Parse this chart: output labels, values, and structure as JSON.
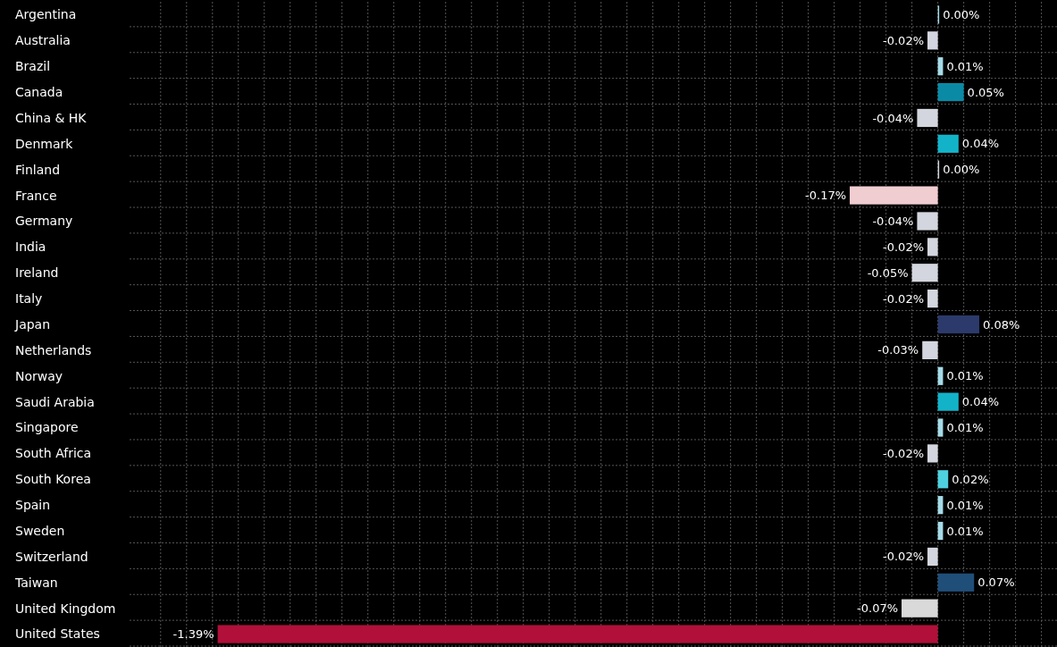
{
  "chart_data": {
    "type": "bar",
    "orientation": "horizontal",
    "categories": [
      "Argentina",
      "Australia",
      "Brazil",
      "Canada",
      "China & HK",
      "Denmark",
      "Finland",
      "France",
      "Germany",
      "India",
      "Ireland",
      "Italy",
      "Japan",
      "Netherlands",
      "Norway",
      "Saudi Arabia",
      "Singapore",
      "South Africa",
      "South Korea",
      "Spain",
      "Sweden",
      "Switzerland",
      "Taiwan",
      "United Kingdom",
      "United States"
    ],
    "values": [
      0.0,
      -0.02,
      0.01,
      0.05,
      -0.04,
      0.04,
      0.0,
      -0.17,
      -0.04,
      -0.02,
      -0.05,
      -0.02,
      0.08,
      -0.03,
      0.01,
      0.04,
      0.01,
      -0.02,
      0.02,
      0.01,
      0.01,
      -0.02,
      0.07,
      -0.07,
      -1.39
    ],
    "value_labels": [
      "0.00%",
      "-0.02%",
      "0.01%",
      "0.05%",
      "-0.04%",
      "0.04%",
      "0.00%",
      "-0.17%",
      "-0.04%",
      "-0.02%",
      "-0.05%",
      "-0.02%",
      "0.08%",
      "-0.03%",
      "0.01%",
      "0.04%",
      "0.01%",
      "-0.02%",
      "0.02%",
      "0.01%",
      "0.01%",
      "-0.02%",
      "0.07%",
      "-0.07%",
      "-1.39%"
    ],
    "colors": [
      "#a6dbe8",
      "#d3d6de",
      "#a6dbe8",
      "#0b8aa5",
      "#d3d6de",
      "#12b3c9",
      "#d3d6de",
      "#f0cdd0",
      "#d3d6de",
      "#d3d6de",
      "#d3d6de",
      "#d3d6de",
      "#2b3a6b",
      "#d3d6de",
      "#a6dbe8",
      "#12b3c9",
      "#a6dbe8",
      "#d3d6de",
      "#4fd0de",
      "#a6dbe8",
      "#a6dbe8",
      "#d3d6de",
      "#1f4e79",
      "#d9d9d9",
      "#b0103a"
    ],
    "xlim": [
      -1.56,
      0.23
    ],
    "xticks": [
      {
        "value": -1.5,
        "label": null
      },
      {
        "value": -1.45,
        "label": null
      },
      {
        "value": -1.4,
        "label": null
      },
      {
        "value": -1.35,
        "label": null
      },
      {
        "value": -1.3,
        "label": null
      },
      {
        "value": -1.25,
        "label": null
      },
      {
        "value": -1.2,
        "label": null
      },
      {
        "value": -1.15,
        "label": null
      },
      {
        "value": -1.1,
        "label": null
      },
      {
        "value": -1.05,
        "label": null
      },
      {
        "value": -1.0,
        "label": null
      },
      {
        "value": -0.95,
        "label": null
      },
      {
        "value": -0.9,
        "label": null
      },
      {
        "value": -0.85,
        "label": null
      },
      {
        "value": -0.8,
        "label": null
      },
      {
        "value": -0.75,
        "label": null
      },
      {
        "value": -0.7,
        "label": null
      },
      {
        "value": -0.65,
        "label": null
      },
      {
        "value": -0.6,
        "label": null
      },
      {
        "value": -0.55,
        "label": null
      },
      {
        "value": -0.5,
        "label": null
      },
      {
        "value": -0.45,
        "label": null
      },
      {
        "value": -0.4,
        "label": null
      },
      {
        "value": -0.35,
        "label": null
      },
      {
        "value": -0.3,
        "label": null
      },
      {
        "value": -0.25,
        "label": null
      },
      {
        "value": -0.2,
        "label": null
      },
      {
        "value": -0.15,
        "label": null
      },
      {
        "value": -0.1,
        "label": null
      },
      {
        "value": -0.05,
        "label": null
      },
      {
        "value": 0,
        "label": null
      },
      {
        "value": 0.05,
        "label": null
      },
      {
        "value": 0.1,
        "label": null
      },
      {
        "value": 0.15,
        "label": null
      },
      {
        "value": 0.2,
        "label": null
      }
    ],
    "grid": true,
    "tick_labels": "y"
  }
}
